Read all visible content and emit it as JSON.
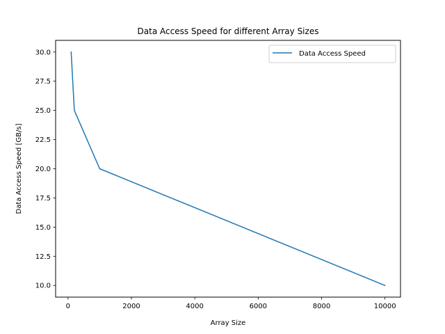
{
  "chart_data": {
    "type": "line",
    "title": "Data Access Speed for different Array Sizes",
    "xlabel": "Array Size",
    "ylabel": "Data Access Speed [GB/s]",
    "xlim": [
      -390,
      10490
    ],
    "ylim": [
      9.0,
      31.0
    ],
    "x_ticks": [
      0,
      2000,
      4000,
      6000,
      8000,
      10000
    ],
    "y_ticks": [
      10.0,
      12.5,
      15.0,
      17.5,
      20.0,
      22.5,
      25.0,
      27.5,
      30.0
    ],
    "x_tick_labels": [
      "0",
      "2000",
      "4000",
      "6000",
      "8000",
      "10000"
    ],
    "y_tick_labels": [
      "10.0",
      "12.5",
      "15.0",
      "17.5",
      "20.0",
      "22.5",
      "25.0",
      "27.5",
      "30.0"
    ],
    "grid": false,
    "legend_position": "top-right",
    "series": [
      {
        "name": "Data Access Speed",
        "color": "#1f77b4",
        "x": [
          100,
          200,
          1000,
          10000
        ],
        "y": [
          30,
          25,
          20,
          10
        ]
      }
    ]
  }
}
